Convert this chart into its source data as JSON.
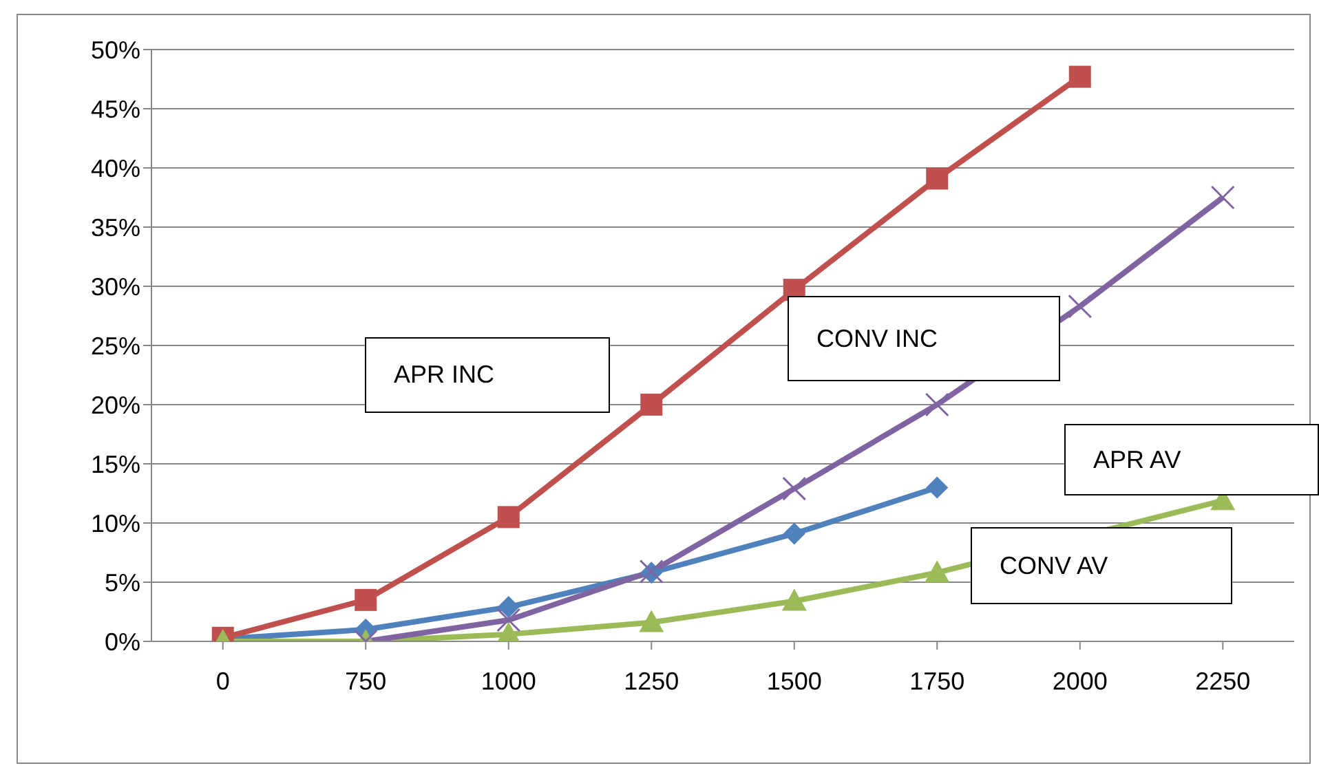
{
  "chart_data": {
    "type": "line",
    "categories": [
      "0",
      "750",
      "1000",
      "1250",
      "1500",
      "1750",
      "2000",
      "2250"
    ],
    "series": [
      {
        "color": "#4f81bd",
        "marker": "diamond",
        "values": [
          0.2,
          1.0,
          2.9,
          5.8,
          9.1,
          13.0,
          null,
          null
        ]
      },
      {
        "color": "#c0504d",
        "marker": "square",
        "values": [
          0.3,
          3.5,
          10.5,
          20.0,
          29.7,
          39.1,
          47.7,
          null
        ]
      },
      {
        "color": "#9bbb59",
        "marker": "triangle",
        "values": [
          0.0,
          0.0,
          0.6,
          1.6,
          3.4,
          5.8,
          null,
          11.9
        ]
      },
      {
        "color": "#8064a2",
        "marker": "cross",
        "values": [
          null,
          0.0,
          1.8,
          5.9,
          12.9,
          20.0,
          28.3,
          37.5
        ]
      }
    ],
    "ylim": [
      0,
      50
    ],
    "yticks": [
      {
        "value": 0,
        "label": "0%"
      },
      {
        "value": 5,
        "label": "5%"
      },
      {
        "value": 10,
        "label": "10%"
      },
      {
        "value": 15,
        "label": "15%"
      },
      {
        "value": 20,
        "label": "20%"
      },
      {
        "value": 25,
        "label": "25%"
      },
      {
        "value": 30,
        "label": "30%"
      },
      {
        "value": 35,
        "label": "35%"
      },
      {
        "value": 40,
        "label": "40%"
      },
      {
        "value": 45,
        "label": "45%"
      },
      {
        "value": 50,
        "label": "50%"
      }
    ],
    "annotations": [
      "APR INC",
      "CONV INC",
      "APR AV",
      "CONV AV"
    ],
    "grid": "y",
    "legend": false
  }
}
